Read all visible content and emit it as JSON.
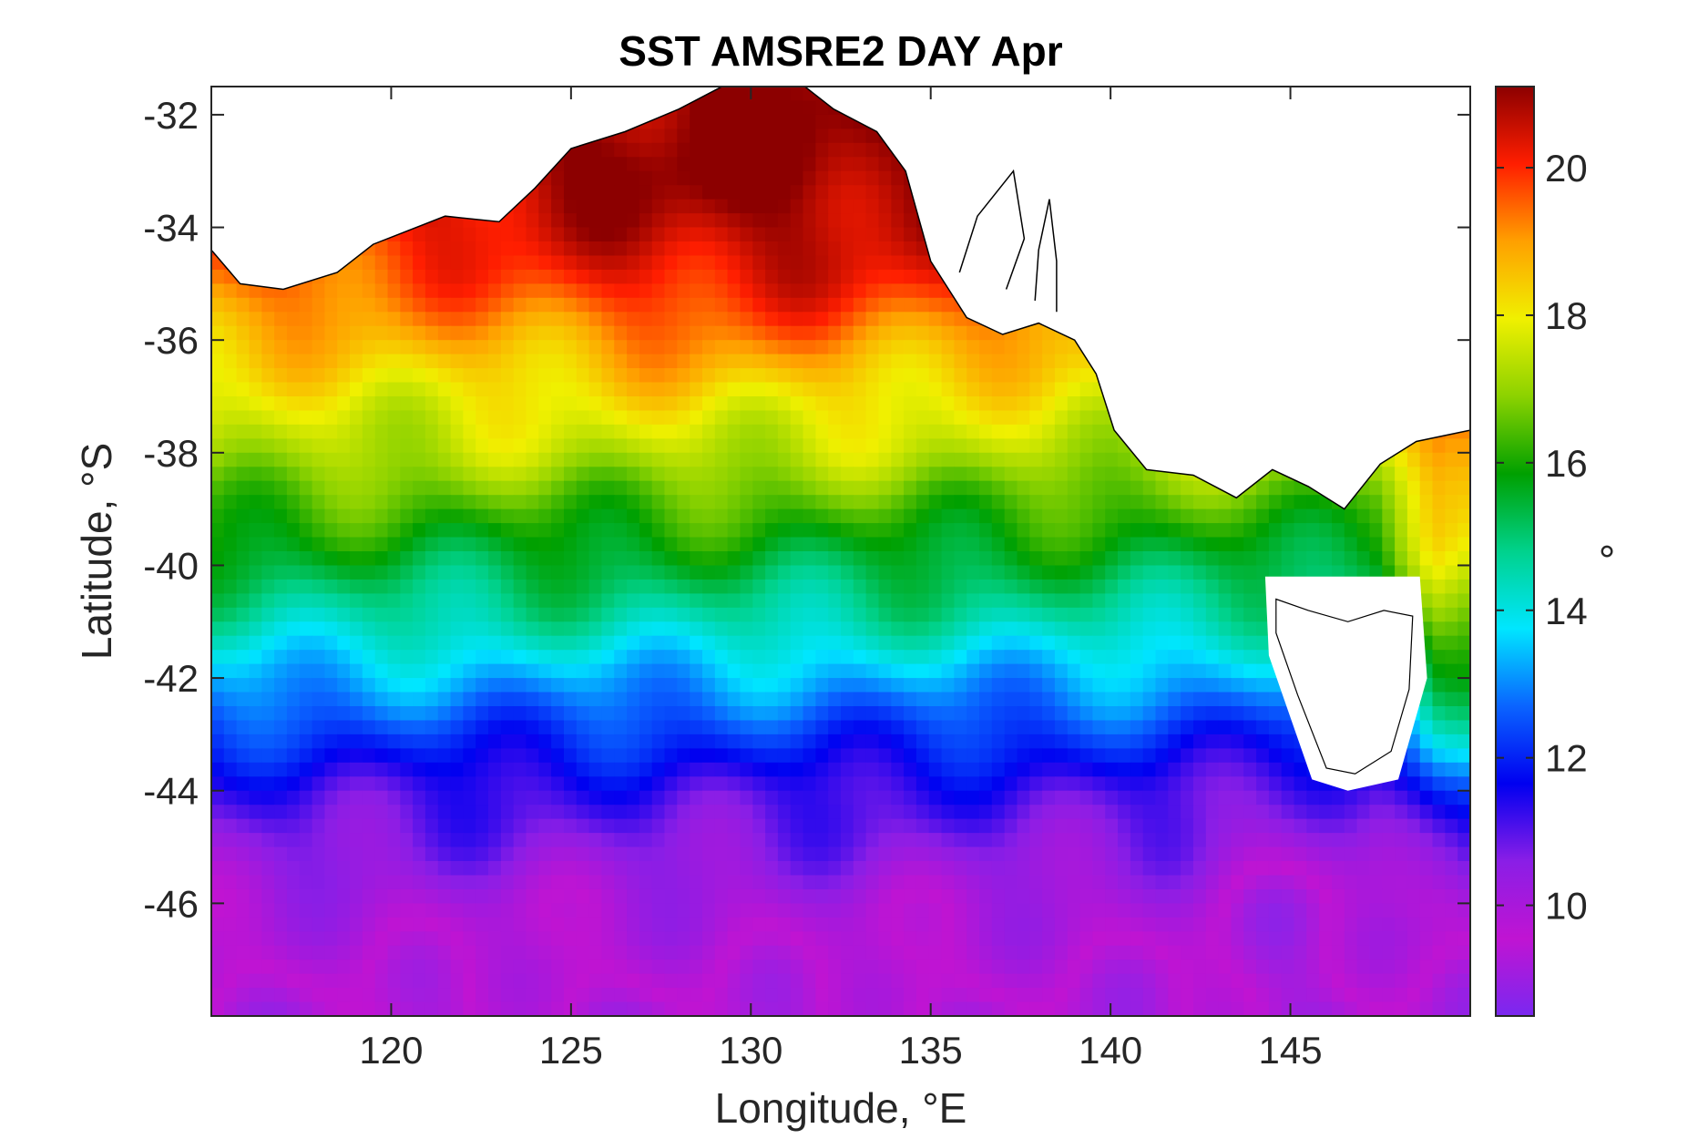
{
  "chart_data": {
    "type": "heatmap",
    "title": "SST AMSRE2 DAY Apr",
    "xlabel": "Longitude, °E",
    "ylabel": "Latitude, °S",
    "colorbar_label": "°",
    "xlim": [
      115,
      150
    ],
    "ylim": [
      -48,
      -31.5
    ],
    "xticks": [
      120,
      125,
      130,
      135,
      140,
      145
    ],
    "xtick_labels": [
      "120",
      "125",
      "130",
      "135",
      "140",
      "145"
    ],
    "yticks": [
      -32,
      -34,
      -36,
      -38,
      -40,
      -42,
      -44,
      -46
    ],
    "ytick_labels": [
      "-32",
      "-34",
      "-36",
      "-38",
      "-40",
      "-42",
      "-44",
      "-46"
    ],
    "colorbar_range": [
      8.5,
      21.1
    ],
    "colorbar_ticks": [
      10,
      12,
      14,
      16,
      18,
      20
    ],
    "colorbar_tick_labels": [
      "10",
      "12",
      "14",
      "16",
      "18",
      "20"
    ],
    "colormap": [
      "#7a28f0",
      "#c014d2",
      "#8a1ee6",
      "#0000f0",
      "#0a64ff",
      "#00e6ff",
      "#00d28c",
      "#00a000",
      "#8cd200",
      "#f0f000",
      "#ffa000",
      "#ff1e00",
      "#8c0000"
    ],
    "sst_profile": {
      "lat": [
        -31.5,
        -33,
        -34,
        -35,
        -36,
        -37,
        -38,
        -39,
        -40,
        -41,
        -42,
        -43,
        -44,
        -45,
        -46,
        -47,
        -48
      ],
      "sst": [
        21.0,
        20.6,
        20.0,
        19.4,
        18.6,
        17.9,
        17.3,
        16.3,
        15.4,
        14.5,
        13.3,
        12.2,
        11.2,
        10.6,
        10.0,
        9.7,
        9.4
      ]
    },
    "grid": false,
    "land_color": "#ffffff",
    "coastline_color": "#000000"
  }
}
